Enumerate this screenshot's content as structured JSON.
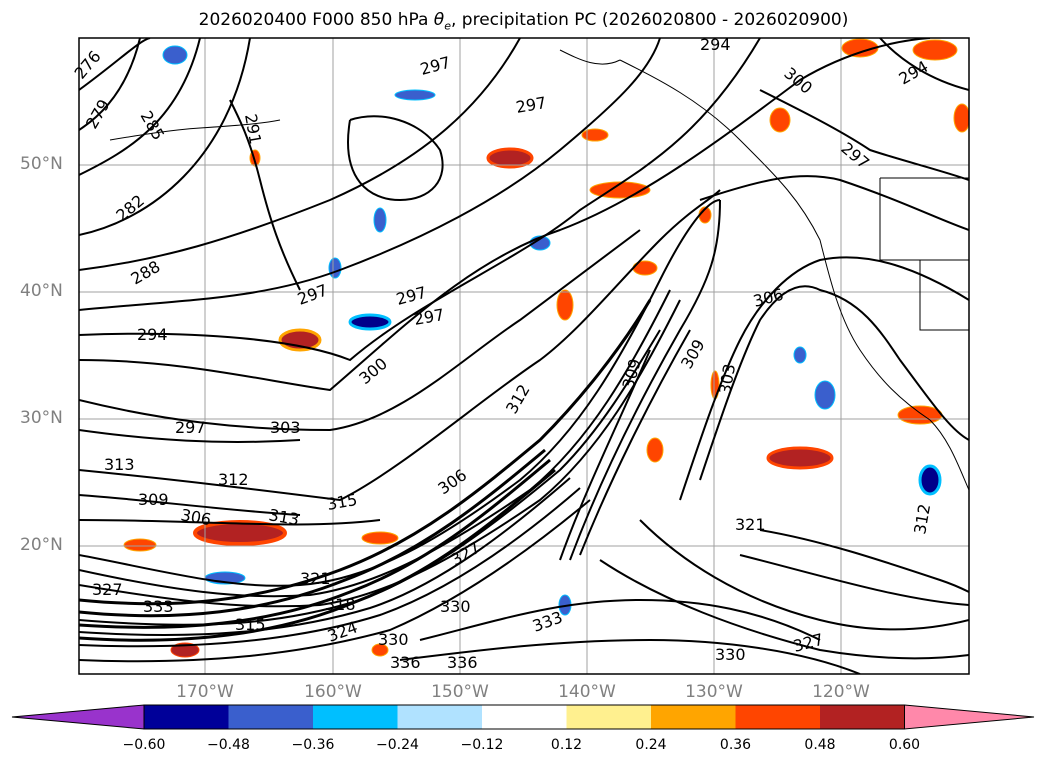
{
  "title": {
    "prefix": "2026020400 F000 850 hPa ",
    "symbol": "θ",
    "subscript": "e",
    "suffix": ", precipitation PC (2026020800 - 2026020900)"
  },
  "map": {
    "lat_labels": [
      "50°N",
      "40°N",
      "30°N",
      "20°N"
    ],
    "lon_labels": [
      "170°W",
      "160°W",
      "150°W",
      "140°W",
      "130°W",
      "120°W"
    ],
    "contour_labels": [
      "276",
      "279",
      "285",
      "291",
      "282",
      "288",
      "294",
      "297",
      "297",
      "297",
      "297",
      "297",
      "297",
      "300",
      "300",
      "303",
      "303",
      "306",
      "306",
      "306",
      "309",
      "309",
      "309",
      "312",
      "312",
      "312",
      "313",
      "313",
      "315",
      "315",
      "318",
      "321",
      "321",
      "324",
      "327",
      "327",
      "327",
      "330",
      "330",
      "330",
      "333",
      "333",
      "336",
      "336",
      "294",
      "294",
      "297"
    ],
    "shading_colors": {
      "negative_strong": "#00008b",
      "negative_mid": "#3a5fcd",
      "negative_light": "#00bfff",
      "positive_light": "#ffa500",
      "positive_mid": "#ff4500",
      "positive_strong": "#b22222"
    }
  },
  "colorbar": {
    "colors": [
      "#9933cc",
      "#000099",
      "#3a5fcd",
      "#00bfff",
      "#b0e2ff",
      "#ffffff",
      "#fff08f",
      "#ffa500",
      "#ff4500",
      "#b22222",
      "#ff88aa"
    ],
    "tick_labels": [
      "−0.60",
      "−0.48",
      "−0.36",
      "−0.24",
      "−0.12",
      "0.12",
      "0.24",
      "0.36",
      "0.48",
      "0.60"
    ]
  }
}
